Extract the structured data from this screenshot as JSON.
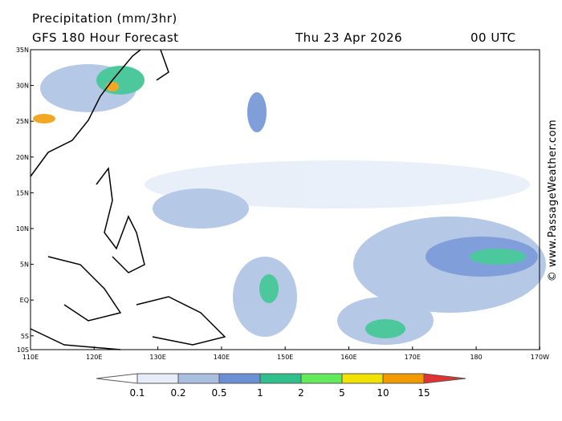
{
  "header": {
    "title": "Precipitation (mm/3hr)",
    "subtitle": "GFS 180 Hour Forecast",
    "date": "Thu 23 Apr 2026",
    "time": "00 UTC"
  },
  "map": {
    "lat_labels": [
      "35N",
      "30N",
      "25N",
      "20N",
      "15N",
      "10N",
      "5N",
      "EQ",
      "5S",
      "10S"
    ],
    "lon_labels": [
      "110E",
      "120E",
      "130E",
      "140E",
      "150E",
      "160E",
      "170E",
      "180",
      "170W"
    ]
  },
  "colorbar": {
    "labels": [
      "0.1",
      "0.2",
      "0.5",
      "1",
      "2",
      "5",
      "10",
      "15"
    ],
    "colors": [
      "#ffffff",
      "#e6edf8",
      "#a9bfe2",
      "#6b8fd4",
      "#2fbf8c",
      "#62ea5c",
      "#f2e200",
      "#f29a00",
      "#e23232"
    ]
  },
  "watermark": "© www.PassageWeather.com"
}
